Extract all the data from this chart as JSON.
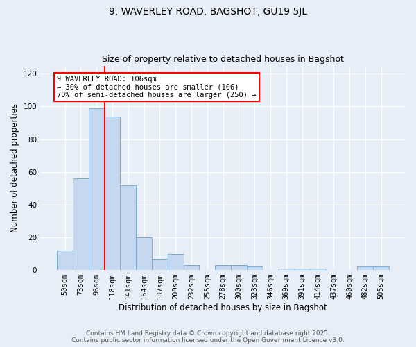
{
  "title1": "9, WAVERLEY ROAD, BAGSHOT, GU19 5JL",
  "title2": "Size of property relative to detached houses in Bagshot",
  "xlabel": "Distribution of detached houses by size in Bagshot",
  "ylabel": "Number of detached properties",
  "categories": [
    "50sqm",
    "73sqm",
    "96sqm",
    "118sqm",
    "141sqm",
    "164sqm",
    "187sqm",
    "209sqm",
    "232sqm",
    "255sqm",
    "278sqm",
    "300sqm",
    "323sqm",
    "346sqm",
    "369sqm",
    "391sqm",
    "414sqm",
    "437sqm",
    "460sqm",
    "482sqm",
    "505sqm"
  ],
  "values": [
    12,
    56,
    99,
    94,
    52,
    20,
    7,
    10,
    3,
    0,
    3,
    3,
    2,
    0,
    1,
    1,
    1,
    0,
    0,
    2,
    2
  ],
  "bar_color": "#c5d8f0",
  "bar_edge_color": "#7aadd4",
  "vline_x_index": 2.5,
  "vline_color": "red",
  "annotation_text": "9 WAVERLEY ROAD: 106sqm\n← 30% of detached houses are smaller (106)\n70% of semi-detached houses are larger (250) →",
  "annotation_box_color": "white",
  "annotation_box_edge_color": "red",
  "ylim": [
    0,
    125
  ],
  "yticks": [
    0,
    20,
    40,
    60,
    80,
    100,
    120
  ],
  "footer1": "Contains HM Land Registry data © Crown copyright and database right 2025.",
  "footer2": "Contains public sector information licensed under the Open Government Licence v3.0.",
  "background_color": "#e8eef8",
  "fig_background_color": "#e8eef8",
  "grid_color": "white",
  "tick_fontsize": 7.5,
  "axis_label_fontsize": 8.5
}
